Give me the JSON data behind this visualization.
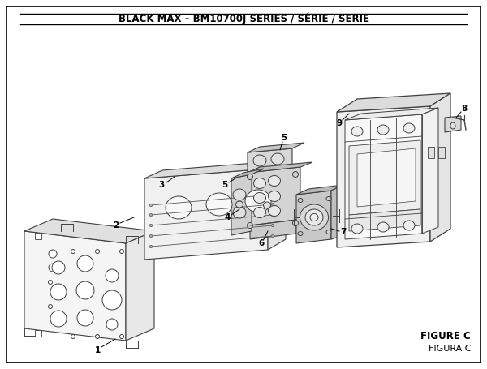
{
  "title": "BLACK MAX – BM10700J SERIES / SÉRIE / SERIE",
  "title_fontsize": 8.5,
  "background_color": "#ffffff",
  "figure_label": "FIGURE C",
  "figure_sublabel": "FIGURA C",
  "lc": "#404040",
  "lw": 0.7
}
